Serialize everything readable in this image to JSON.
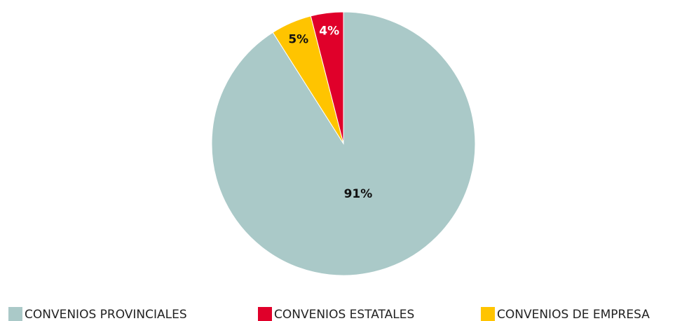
{
  "chart_data": {
    "type": "pie",
    "categories": [
      "CONVENIOS PROVINCIALES",
      "CONVENIOS ESTATALES",
      "CONVENIOS DE EMPRESA"
    ],
    "values": [
      91,
      4,
      5
    ],
    "value_labels": [
      "91%",
      "4%",
      "5%"
    ],
    "colors": [
      "#aac9c8",
      "#e0002a",
      "#ffc400"
    ],
    "legend": "bottom"
  }
}
